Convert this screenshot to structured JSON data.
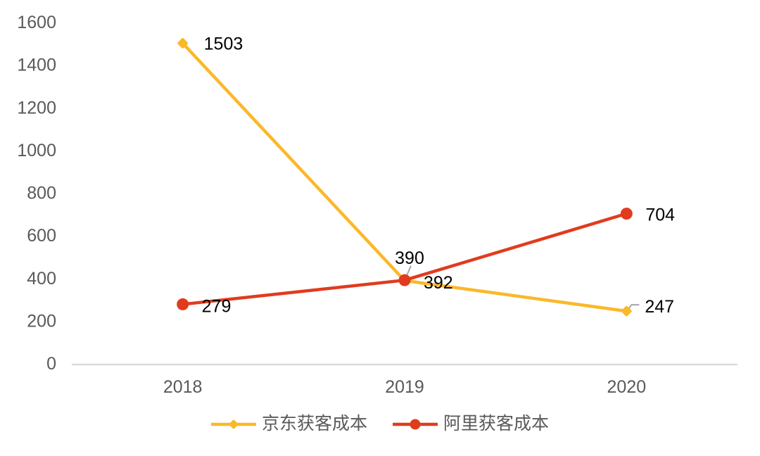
{
  "chart_data": {
    "type": "line",
    "categories": [
      "2018",
      "2019",
      "2020"
    ],
    "series": [
      {
        "name": "京东获客成本",
        "marker": "diamond",
        "color": "#FBB829",
        "values": [
          1503,
          390,
          247
        ],
        "labels": [
          {
            "dx": 30,
            "dy": 1,
            "anchor": "start"
          },
          {
            "dx": 7,
            "dy": -32,
            "anchor": "middle",
            "leader": [
              [
                2,
                -5
              ],
              [
                9,
                -21
              ]
            ]
          },
          {
            "dx": 26,
            "dy": -6,
            "anchor": "start",
            "leader": [
              [
                3,
                -3
              ],
              [
                7,
                -9
              ],
              [
                18,
                -9
              ]
            ]
          }
        ]
      },
      {
        "name": "阿里获客成本",
        "marker": "circle",
        "color": "#E13B1E",
        "values": [
          279,
          392,
          704
        ],
        "labels": [
          {
            "dx": 27,
            "dy": 3,
            "anchor": "start"
          },
          {
            "dx": 27,
            "dy": 4,
            "anchor": "start"
          },
          {
            "dx": 27,
            "dy": 2,
            "anchor": "start"
          }
        ]
      }
    ],
    "ylim": [
      0,
      1600
    ],
    "yticks": [
      0,
      200,
      400,
      600,
      800,
      1000,
      1200,
      1400,
      1600
    ],
    "grid": false,
    "legend_position": "bottom",
    "axis_line_color": "#D9D9D9",
    "tick_label_color": "#595959",
    "value_label_color": "#000000",
    "leader_line_color": "#A6A6A6"
  }
}
